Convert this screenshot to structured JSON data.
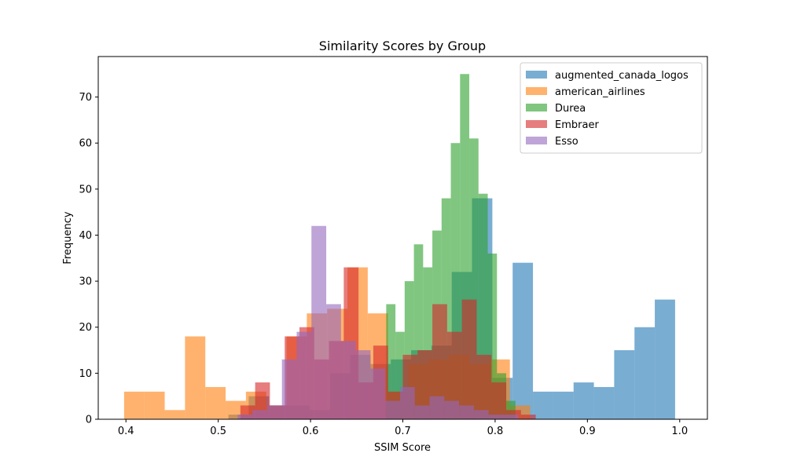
{
  "chart_data": {
    "type": "histogram",
    "title": "Similarity Scores by Group",
    "xlabel": "SSIM Score",
    "ylabel": "Frequency",
    "xlim": [
      0.37,
      1.03
    ],
    "ylim": [
      0,
      78.8
    ],
    "xticks": [
      "0.4",
      "0.5",
      "0.6",
      "0.7",
      "0.8",
      "0.9",
      "1.0"
    ],
    "yticks": [
      "0",
      "10",
      "20",
      "30",
      "40",
      "50",
      "60",
      "70"
    ],
    "grid": false,
    "legend_position": "top-right",
    "series": [
      {
        "name": "augmented_canada_logos",
        "color": "#1f77b4",
        "x": [
          0.522,
          0.544,
          0.566,
          0.588,
          0.61,
          0.632,
          0.654,
          0.676,
          0.698,
          0.72,
          0.742,
          0.764,
          0.786,
          0.808,
          0.83,
          0.852,
          0.874,
          0.896,
          0.918,
          0.94,
          0.962,
          0.984
        ],
        "values": [
          1,
          5,
          3,
          3,
          2,
          10,
          14,
          12,
          13,
          15,
          16,
          32,
          48,
          9,
          34,
          6,
          6,
          8,
          7,
          15,
          20,
          26
        ]
      },
      {
        "name": "american_airlines",
        "color": "#ff7f0e",
        "x": [
          0.409,
          0.431,
          0.453,
          0.475,
          0.497,
          0.519,
          0.541,
          0.563,
          0.585,
          0.607,
          0.629,
          0.651,
          0.673,
          0.695,
          0.717,
          0.739,
          0.761,
          0.783,
          0.805,
          0.827
        ],
        "values": [
          6,
          6,
          2,
          18,
          7,
          4,
          6,
          3,
          18,
          23,
          24,
          33,
          23,
          6,
          12,
          13,
          14,
          12,
          13,
          3
        ]
      },
      {
        "name": "Durea",
        "color": "#2ca02c",
        "x": [
          0.687,
          0.697,
          0.707,
          0.717,
          0.727,
          0.737,
          0.747,
          0.757,
          0.767,
          0.777,
          0.787,
          0.797,
          0.807,
          0.817
        ],
        "values": [
          25,
          19,
          30,
          38,
          33,
          41,
          48,
          60,
          75,
          61,
          49,
          36,
          10,
          4
        ]
      },
      {
        "name": "Embraer",
        "color": "#d62728",
        "x": [
          0.532,
          0.548,
          0.564,
          0.58,
          0.596,
          0.612,
          0.628,
          0.644,
          0.66,
          0.676,
          0.692,
          0.708,
          0.724,
          0.74,
          0.756,
          0.772,
          0.788,
          0.804,
          0.82,
          0.836
        ],
        "values": [
          3,
          8,
          3,
          18,
          20,
          13,
          17,
          33,
          8,
          16,
          6,
          14,
          15,
          25,
          19,
          26,
          14,
          8,
          2,
          1
        ]
      },
      {
        "name": "Esso",
        "color": "#9467bd",
        "x": [
          0.529,
          0.545,
          0.561,
          0.577,
          0.593,
          0.609,
          0.625,
          0.641,
          0.657,
          0.673,
          0.689,
          0.705,
          0.721,
          0.737,
          0.753,
          0.769,
          0.785,
          0.801,
          0.817
        ],
        "values": [
          1,
          2,
          3,
          13,
          19,
          42,
          25,
          17,
          15,
          11,
          4,
          7,
          3,
          5,
          4,
          3,
          2,
          1,
          1
        ]
      }
    ]
  }
}
